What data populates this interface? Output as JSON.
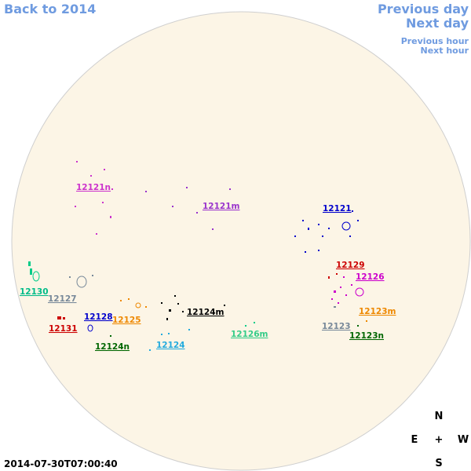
{
  "nav": {
    "back": "Back to 2014",
    "previous_day": "Previous day",
    "next_day": "Next day",
    "previous_hour": "Previous hour",
    "next_hour": "Next hour"
  },
  "regions": [
    "12121n",
    "12121m",
    "12121",
    "12129",
    "12126",
    "12130",
    "12127",
    "12128",
    "12125",
    "12124m",
    "12123m",
    "12131",
    "12123",
    "12126m",
    "12123n",
    "12124n",
    "12124"
  ],
  "compass": {
    "north": "N",
    "east": "E",
    "center": "+",
    "west": "W",
    "south": "S"
  },
  "timestamp": "2014-07-30T07:00:40"
}
